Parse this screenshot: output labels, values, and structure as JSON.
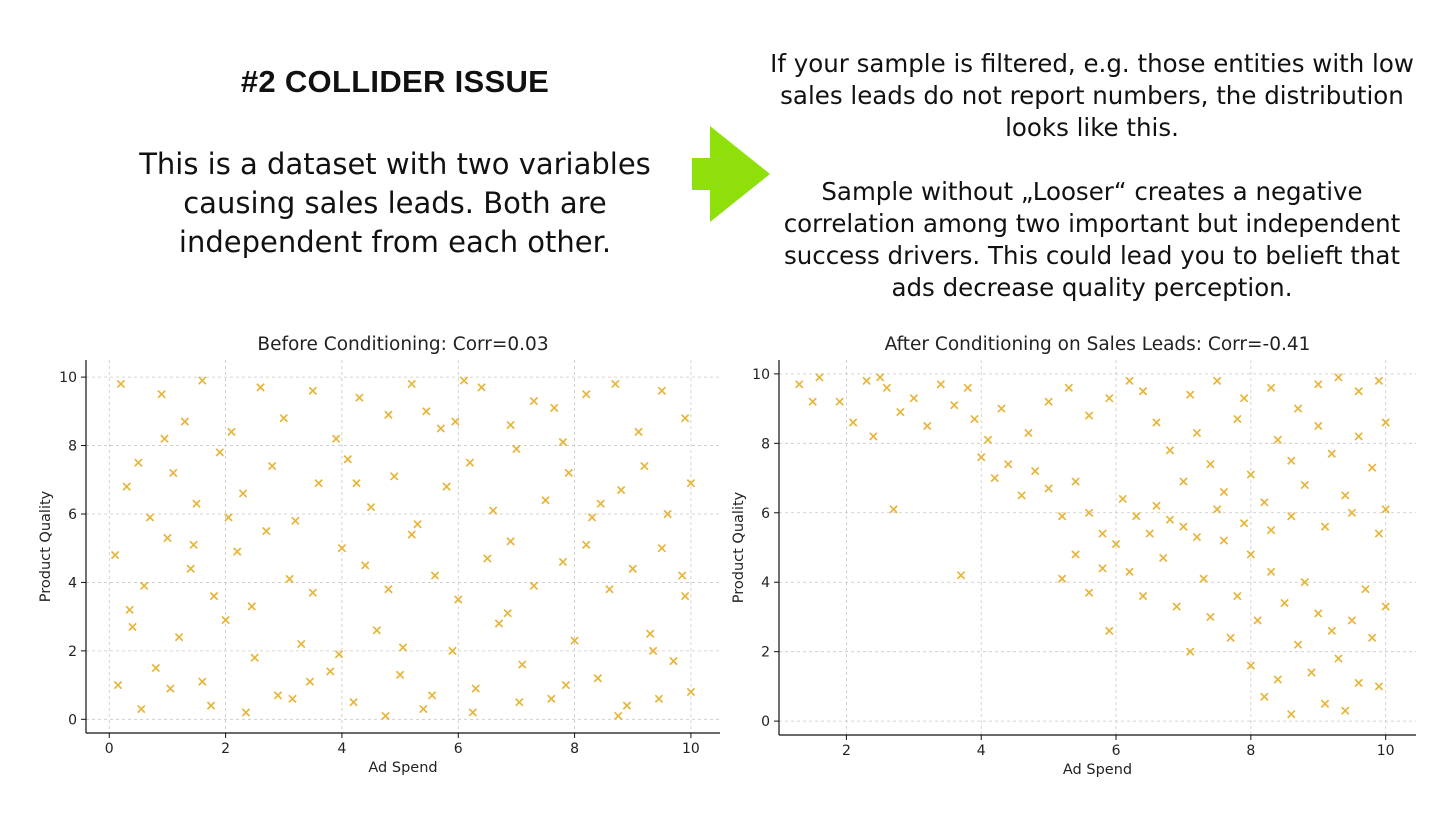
{
  "heading": "#2 COLLIDER ISSUE",
  "intro": "This is a dataset with two variables causing sales leads. Both are independent from each other.",
  "right_paragraph_1": "If your sample is filtered, e.g. those entities with low sales leads do not report numbers, the distribution looks like this.",
  "right_paragraph_2": "Sample without „Looser“ creates a negative correlation among two important but independent success drivers. This could lead you to belieft that ads decrease quality perception.",
  "colors": {
    "marker": "#e8b53b",
    "arrow": "#8fe00a",
    "grid": "#c8c8c8"
  },
  "icons": {
    "arrow": "right-arrow-icon"
  },
  "chart_data": [
    {
      "type": "scatter",
      "title": "Before Conditioning: Corr=0.03",
      "xlabel": "Ad Spend",
      "ylabel": "Product Quality",
      "xlim": [
        -0.4,
        10.5
      ],
      "ylim": [
        -0.4,
        10.5
      ],
      "xticks": [
        0,
        2,
        4,
        6,
        8,
        10
      ],
      "yticks": [
        0,
        2,
        4,
        6,
        8,
        10
      ],
      "grid": true,
      "marker": "x",
      "series": [
        {
          "points": [
            [
              0.2,
              9.8
            ],
            [
              0.5,
              7.5
            ],
            [
              0.9,
              9.5
            ],
            [
              1.3,
              8.7
            ],
            [
              1.6,
              9.9
            ],
            [
              2.1,
              8.4
            ],
            [
              2.6,
              9.7
            ],
            [
              3.0,
              8.8
            ],
            [
              3.5,
              9.6
            ],
            [
              3.9,
              8.2
            ],
            [
              4.3,
              9.4
            ],
            [
              4.8,
              8.9
            ],
            [
              5.2,
              9.8
            ],
            [
              5.7,
              8.5
            ],
            [
              6.1,
              9.9
            ],
            [
              6.4,
              9.7
            ],
            [
              6.9,
              8.6
            ],
            [
              7.3,
              9.3
            ],
            [
              7.8,
              8.1
            ],
            [
              8.2,
              9.5
            ],
            [
              8.7,
              9.8
            ],
            [
              9.1,
              8.4
            ],
            [
              9.5,
              9.6
            ],
            [
              9.9,
              8.8
            ],
            [
              0.3,
              6.8
            ],
            [
              0.7,
              5.9
            ],
            [
              1.1,
              7.2
            ],
            [
              1.5,
              6.3
            ],
            [
              1.9,
              7.8
            ],
            [
              2.3,
              6.6
            ],
            [
              2.8,
              7.4
            ],
            [
              3.2,
              5.8
            ],
            [
              3.6,
              6.9
            ],
            [
              4.1,
              7.6
            ],
            [
              4.5,
              6.2
            ],
            [
              4.9,
              7.1
            ],
            [
              5.3,
              5.7
            ],
            [
              5.8,
              6.8
            ],
            [
              6.2,
              7.5
            ],
            [
              6.6,
              6.1
            ],
            [
              7.0,
              7.9
            ],
            [
              7.5,
              6.4
            ],
            [
              7.9,
              7.2
            ],
            [
              8.3,
              5.9
            ],
            [
              8.8,
              6.7
            ],
            [
              9.2,
              7.4
            ],
            [
              9.6,
              6.0
            ],
            [
              10.0,
              6.9
            ],
            [
              0.1,
              4.8
            ],
            [
              0.6,
              3.9
            ],
            [
              1.0,
              5.3
            ],
            [
              1.4,
              4.4
            ],
            [
              1.8,
              3.6
            ],
            [
              2.2,
              4.9
            ],
            [
              2.7,
              5.5
            ],
            [
              3.1,
              4.1
            ],
            [
              3.5,
              3.7
            ],
            [
              4.0,
              5.0
            ],
            [
              4.4,
              4.5
            ],
            [
              4.8,
              3.8
            ],
            [
              5.2,
              5.4
            ],
            [
              5.6,
              4.2
            ],
            [
              6.0,
              3.5
            ],
            [
              6.5,
              4.7
            ],
            [
              6.9,
              5.2
            ],
            [
              7.3,
              3.9
            ],
            [
              7.8,
              4.6
            ],
            [
              8.2,
              5.1
            ],
            [
              8.6,
              3.8
            ],
            [
              9.0,
              4.4
            ],
            [
              9.5,
              5.0
            ],
            [
              9.9,
              3.6
            ],
            [
              0.4,
              2.7
            ],
            [
              0.8,
              1.5
            ],
            [
              1.2,
              2.4
            ],
            [
              1.6,
              1.1
            ],
            [
              2.0,
              2.9
            ],
            [
              2.5,
              1.8
            ],
            [
              2.9,
              0.7
            ],
            [
              3.3,
              2.2
            ],
            [
              3.8,
              1.4
            ],
            [
              4.2,
              0.5
            ],
            [
              4.6,
              2.6
            ],
            [
              5.0,
              1.3
            ],
            [
              5.4,
              0.3
            ],
            [
              5.9,
              2.0
            ],
            [
              6.3,
              0.9
            ],
            [
              6.7,
              2.8
            ],
            [
              7.1,
              1.6
            ],
            [
              7.6,
              0.6
            ],
            [
              8.0,
              2.3
            ],
            [
              8.4,
              1.2
            ],
            [
              8.9,
              0.4
            ],
            [
              9.3,
              2.5
            ],
            [
              9.7,
              1.7
            ],
            [
              10.0,
              0.8
            ],
            [
              0.15,
              1.0
            ],
            [
              0.55,
              0.3
            ],
            [
              1.05,
              0.9
            ],
            [
              1.75,
              0.4
            ],
            [
              2.35,
              0.2
            ],
            [
              3.15,
              0.6
            ],
            [
              3.95,
              1.9
            ],
            [
              4.75,
              0.1
            ],
            [
              5.55,
              0.7
            ],
            [
              6.25,
              0.2
            ],
            [
              7.05,
              0.5
            ],
            [
              7.85,
              1.0
            ],
            [
              8.75,
              0.1
            ],
            [
              9.45,
              0.6
            ],
            [
              0.35,
              3.2
            ],
            [
              0.95,
              8.2
            ],
            [
              1.45,
              5.1
            ],
            [
              2.45,
              3.3
            ],
            [
              3.45,
              1.1
            ],
            [
              4.25,
              6.9
            ],
            [
              5.05,
              2.1
            ],
            [
              5.95,
              8.7
            ],
            [
              6.85,
              3.1
            ],
            [
              7.65,
              9.1
            ],
            [
              8.45,
              6.3
            ],
            [
              9.35,
              2.0
            ],
            [
              9.85,
              4.2
            ],
            [
              2.05,
              5.9
            ],
            [
              5.45,
              9.0
            ]
          ]
        }
      ]
    },
    {
      "type": "scatter",
      "title": "After Conditioning on Sales Leads: Corr=-0.41",
      "xlabel": "Ad Spend",
      "ylabel": "Product Quality",
      "xlim": [
        1.0,
        10.45
      ],
      "ylim": [
        -0.4,
        10.4
      ],
      "xticks": [
        2,
        4,
        6,
        8,
        10
      ],
      "yticks": [
        0,
        2,
        4,
        6,
        8,
        10
      ],
      "grid": true,
      "marker": "x",
      "series": [
        {
          "points": [
            [
              1.3,
              9.7
            ],
            [
              1.5,
              9.2
            ],
            [
              1.6,
              9.9
            ],
            [
              1.9,
              9.2
            ],
            [
              2.1,
              8.6
            ],
            [
              2.3,
              9.8
            ],
            [
              2.4,
              8.2
            ],
            [
              2.5,
              9.9
            ],
            [
              2.6,
              9.6
            ],
            [
              2.8,
              8.9
            ],
            [
              3.0,
              9.3
            ],
            [
              3.2,
              8.5
            ],
            [
              3.4,
              9.7
            ],
            [
              3.6,
              9.1
            ],
            [
              3.8,
              9.6
            ],
            [
              3.9,
              8.7
            ],
            [
              4.1,
              8.1
            ],
            [
              4.3,
              9.0
            ],
            [
              2.7,
              6.1
            ],
            [
              3.7,
              4.2
            ],
            [
              4.0,
              7.6
            ],
            [
              4.2,
              7.0
            ],
            [
              4.4,
              7.4
            ],
            [
              4.6,
              6.5
            ],
            [
              4.8,
              7.2
            ],
            [
              5.0,
              6.7
            ],
            [
              5.2,
              5.9
            ],
            [
              5.4,
              6.9
            ],
            [
              5.6,
              6.0
            ],
            [
              5.8,
              5.4
            ],
            [
              4.7,
              8.3
            ],
            [
              5.0,
              9.2
            ],
            [
              5.3,
              9.6
            ],
            [
              5.6,
              8.8
            ],
            [
              5.9,
              9.3
            ],
            [
              6.2,
              9.8
            ],
            [
              6.4,
              9.5
            ],
            [
              6.6,
              8.6
            ],
            [
              5.2,
              4.1
            ],
            [
              5.4,
              4.8
            ],
            [
              5.6,
              3.7
            ],
            [
              5.8,
              4.4
            ],
            [
              5.9,
              2.6
            ],
            [
              6.0,
              5.1
            ],
            [
              6.2,
              4.3
            ],
            [
              6.4,
              3.6
            ],
            [
              6.5,
              5.4
            ],
            [
              6.7,
              4.7
            ],
            [
              6.9,
              3.3
            ],
            [
              7.0,
              5.6
            ],
            [
              7.1,
              2.0
            ],
            [
              7.3,
              4.1
            ],
            [
              7.4,
              3.0
            ],
            [
              7.6,
              5.2
            ],
            [
              7.7,
              2.4
            ],
            [
              7.8,
              3.6
            ],
            [
              8.0,
              4.8
            ],
            [
              8.0,
              1.6
            ],
            [
              8.1,
              2.9
            ],
            [
              8.2,
              0.7
            ],
            [
              8.3,
              4.3
            ],
            [
              8.4,
              1.2
            ],
            [
              8.5,
              3.4
            ],
            [
              8.6,
              0.2
            ],
            [
              8.7,
              2.2
            ],
            [
              8.8,
              4.0
            ],
            [
              8.9,
              1.4
            ],
            [
              9.0,
              3.1
            ],
            [
              9.1,
              0.5
            ],
            [
              9.2,
              2.6
            ],
            [
              9.3,
              1.8
            ],
            [
              9.4,
              0.3
            ],
            [
              9.5,
              2.9
            ],
            [
              9.6,
              1.1
            ],
            [
              9.7,
              3.8
            ],
            [
              9.8,
              2.4
            ],
            [
              9.9,
              1.0
            ],
            [
              10.0,
              3.3
            ],
            [
              6.8,
              7.8
            ],
            [
              7.0,
              6.9
            ],
            [
              7.2,
              8.3
            ],
            [
              7.4,
              7.4
            ],
            [
              7.6,
              6.6
            ],
            [
              7.8,
              8.7
            ],
            [
              8.0,
              7.1
            ],
            [
              8.2,
              6.3
            ],
            [
              8.4,
              8.1
            ],
            [
              8.6,
              7.5
            ],
            [
              8.8,
              6.8
            ],
            [
              9.0,
              8.5
            ],
            [
              9.2,
              7.7
            ],
            [
              9.4,
              6.5
            ],
            [
              9.6,
              8.2
            ],
            [
              9.8,
              7.3
            ],
            [
              10.0,
              6.1
            ],
            [
              7.1,
              9.4
            ],
            [
              7.5,
              9.8
            ],
            [
              7.9,
              9.3
            ],
            [
              8.3,
              9.6
            ],
            [
              8.7,
              9.0
            ],
            [
              9.0,
              9.7
            ],
            [
              9.3,
              9.9
            ],
            [
              9.6,
              9.5
            ],
            [
              9.9,
              9.8
            ],
            [
              10.0,
              8.6
            ],
            [
              6.1,
              6.4
            ],
            [
              6.3,
              5.9
            ],
            [
              6.6,
              6.2
            ],
            [
              6.8,
              5.8
            ],
            [
              7.2,
              5.3
            ],
            [
              7.5,
              6.1
            ],
            [
              7.9,
              5.7
            ],
            [
              8.3,
              5.5
            ],
            [
              8.6,
              5.9
            ],
            [
              9.1,
              5.6
            ],
            [
              9.5,
              6.0
            ],
            [
              9.9,
              5.4
            ]
          ]
        }
      ]
    }
  ]
}
